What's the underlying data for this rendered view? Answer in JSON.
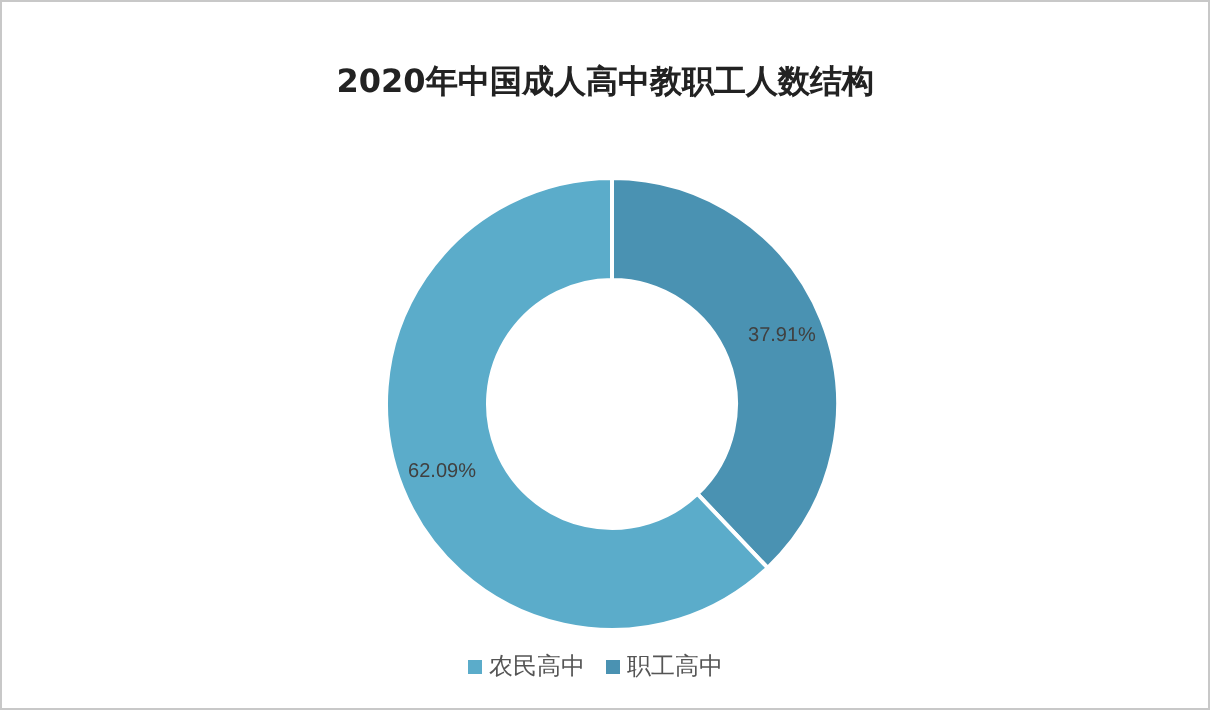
{
  "chart_data": {
    "type": "donut",
    "title": "2020年中国成人高中教职工人数结构",
    "categories": [
      "职工高中",
      "农民高中"
    ],
    "values": [
      37.91,
      62.09
    ],
    "colors": [
      "#4a92b2",
      "#5bacca"
    ],
    "value_labels": [
      "37.91%",
      "62.09%"
    ],
    "legend": "bottom"
  }
}
